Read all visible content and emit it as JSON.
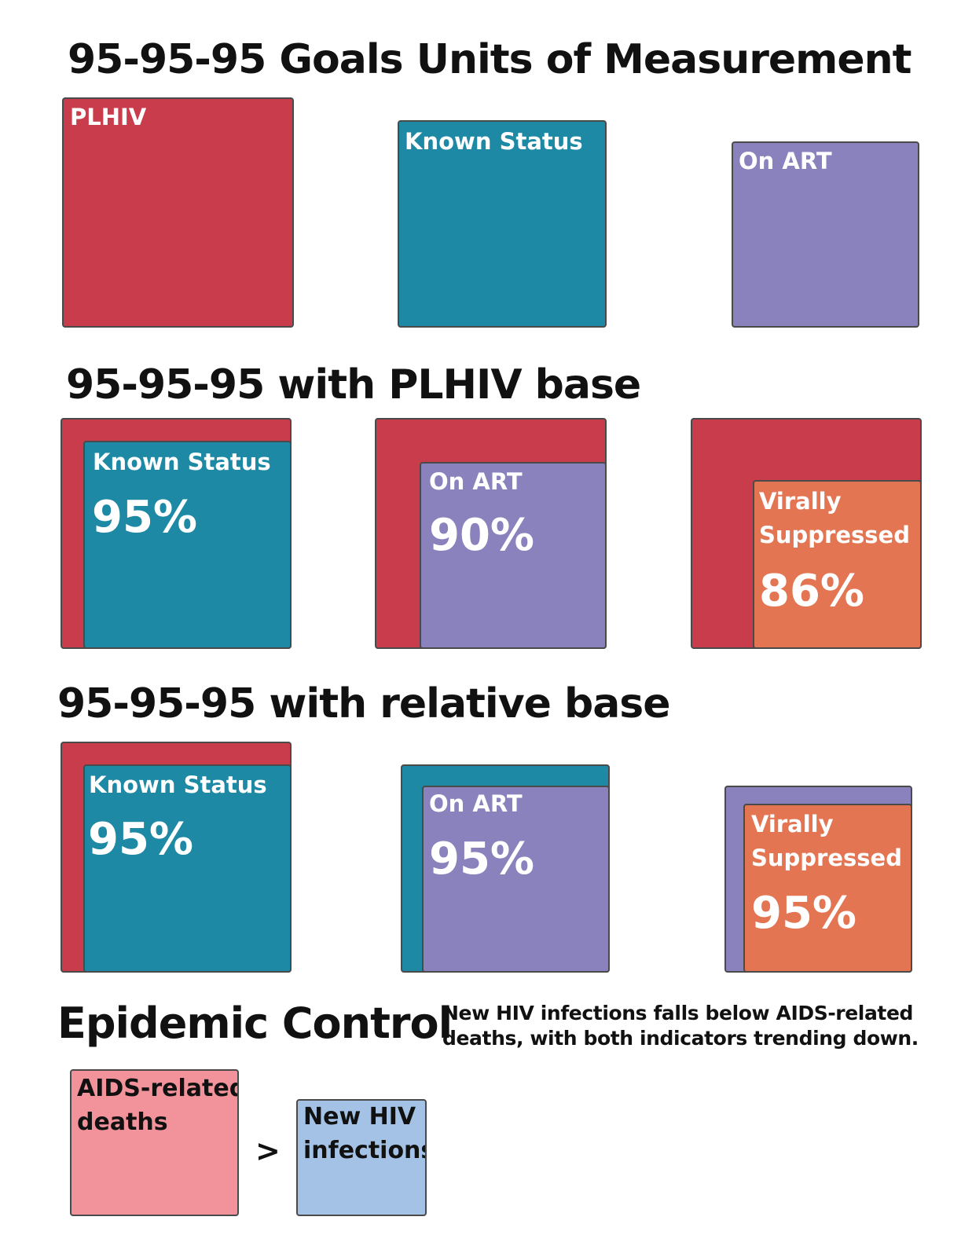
{
  "colors": {
    "plhiv": "#c93c4b",
    "known_status": "#1e89a5",
    "on_art": "#8982bc",
    "virally_suppressed": "#e37552",
    "aids_deaths": "#f2939b",
    "new_infections": "#a4c2e6"
  },
  "section1": {
    "title": "95-95-95 Goals Units of Measurement",
    "plhiv_label": "PLHIV",
    "known_label": "Known Status",
    "art_label": "On ART"
  },
  "section2": {
    "title": "95-95-95 with PLHIV base",
    "known_label": "Known Status",
    "known_pct": "95%",
    "art_label": "On ART",
    "art_pct": "90%",
    "vs_label_line1": "Virally",
    "vs_label_line2": "Suppressed",
    "vs_pct": "86%"
  },
  "section3": {
    "title": "95-95-95 with relative base",
    "known_label": "Known Status",
    "known_pct": "95%",
    "art_label": "On ART",
    "art_pct": "95%",
    "vs_label_line1": "Virally",
    "vs_label_line2": "Suppressed",
    "vs_pct": "95%"
  },
  "section4": {
    "title": "Epidemic Control",
    "note_line1": "New HIV infections falls below AIDS-related",
    "note_line2": "deaths, with both indicators trending down.",
    "deaths_line1": "AIDS-related",
    "deaths_line2": "deaths",
    "comparator": ">",
    "infections_line1": "New HIV",
    "infections_line2": "infections"
  }
}
